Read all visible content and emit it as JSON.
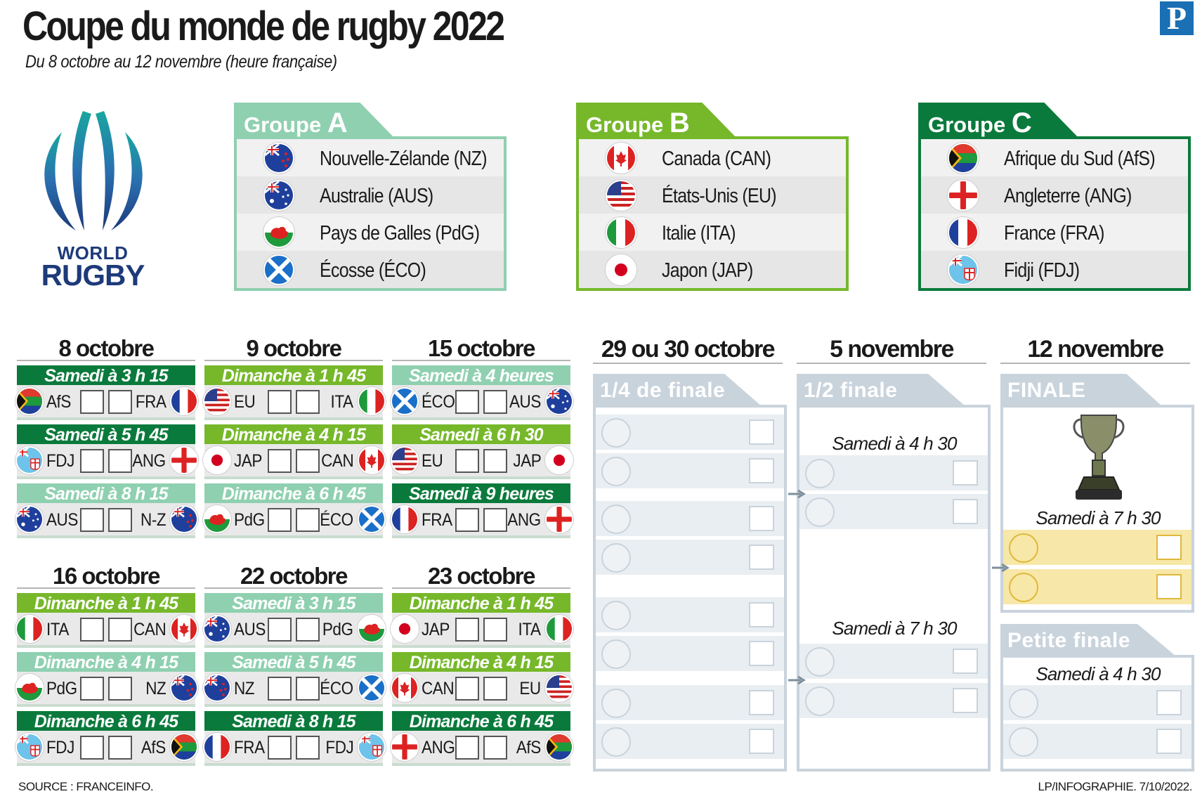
{
  "header": {
    "title": "Coupe du monde de rugby 2022",
    "subtitle": "Du 8 octobre au 12 novembre (heure française)",
    "brand": "P"
  },
  "logo": {
    "line1": "WORLD",
    "line2": "RUGBY"
  },
  "colors": {
    "groupA": "#8fd0b0",
    "groupB": "#76b82a",
    "groupC": "#0a7a3c",
    "time_light": "#8fd0b0",
    "time_mid": "#76b82a",
    "time_dark": "#0a7a3c",
    "knockout": "#c9d3dc",
    "final_slot": "#f7e7a8"
  },
  "groups": [
    {
      "prefix": "Groupe ",
      "letter": "A",
      "teams": [
        "Nouvelle-Zélande (NZ)",
        "Australie (AUS)",
        "Pays de Galles (PdG)",
        "Écosse (ÉCO)"
      ],
      "flags": [
        "nz-flag-icon",
        "australia-flag-icon",
        "wales-flag-icon",
        "scotland-flag-icon"
      ]
    },
    {
      "prefix": "Groupe ",
      "letter": "B",
      "teams": [
        "Canada (CAN)",
        "États-Unis (EU)",
        "Italie (ITA)",
        "Japon (JAP)"
      ],
      "flags": [
        "canada-flag-icon",
        "usa-flag-icon",
        "italy-flag-icon",
        "japan-flag-icon"
      ]
    },
    {
      "prefix": "Groupe ",
      "letter": "C",
      "teams": [
        "Afrique du Sud (AfS)",
        "Angleterre (ANG)",
        "France (FRA)",
        "Fidji (FDJ)"
      ],
      "flags": [
        "south-africa-flag-icon",
        "england-flag-icon",
        "france-flag-icon",
        "fiji-flag-icon"
      ]
    }
  ],
  "days": [
    {
      "date": "8 octobre",
      "matches": [
        {
          "time": "Samedi à 3 h 15",
          "a": "AfS",
          "b": "FRA"
        },
        {
          "time": "Samedi à 5 h 45",
          "a": "FDJ",
          "b": "ANG"
        },
        {
          "time": "Samedi à 8 h 15",
          "a": "AUS",
          "b": "N-Z"
        }
      ]
    },
    {
      "date": "9 octobre",
      "matches": [
        {
          "time": "Dimanche à 1 h 45",
          "a": "EU",
          "b": "ITA"
        },
        {
          "time": "Dimanche à 4 h 15",
          "a": "JAP",
          "b": "CAN"
        },
        {
          "time": "Dimanche à 6 h 45",
          "a": "PdG",
          "b": "ÉCO"
        }
      ]
    },
    {
      "date": "15 octobre",
      "matches": [
        {
          "time": "Samedi à 4 heures",
          "a": "ÉCO",
          "b": "AUS"
        },
        {
          "time": "Samedi à 6 h 30",
          "a": "EU",
          "b": "JAP"
        },
        {
          "time": "Samedi à 9 heures",
          "a": "FRA",
          "b": "ANG"
        }
      ]
    },
    {
      "date": "16 octobre",
      "matches": [
        {
          "time": "Dimanche à 1 h 45",
          "a": "ITA",
          "b": "CAN"
        },
        {
          "time": "Dimanche à 4 h 15",
          "a": "PdG",
          "b": "NZ"
        },
        {
          "time": "Dimanche à 6 h 45",
          "a": "FDJ",
          "b": "AfS"
        }
      ]
    },
    {
      "date": "22 octobre",
      "matches": [
        {
          "time": "Samedi à 3 h 15",
          "a": "AUS",
          "b": "PdG"
        },
        {
          "time": "Samedi à 5 h 45",
          "a": "NZ",
          "b": "ÉCO"
        },
        {
          "time": "Samedi à 8 h 15",
          "a": "FRA",
          "b": "FDJ"
        }
      ]
    },
    {
      "date": "23 octobre",
      "matches": [
        {
          "time": "Dimanche à 1 h 45",
          "a": "JAP",
          "b": "ITA"
        },
        {
          "time": "Dimanche à 4 h 15",
          "a": "CAN",
          "b": "EU"
        },
        {
          "time": "Dimanche à 6 h 45",
          "a": "ANG",
          "b": "AfS"
        }
      ]
    }
  ],
  "knockout": {
    "quarter": {
      "date": "29 ou 30 octobre",
      "label": "1/4 de finale"
    },
    "semi": {
      "date": "5 novembre",
      "label": "1/2 finale",
      "time1": "Samedi à 4 h 30",
      "time2": "Samedi à 7 h 30"
    },
    "final": {
      "date": "12 novembre",
      "label": "FINALE",
      "time": "Samedi à 7 h 30"
    },
    "small_final": {
      "label": "Petite finale",
      "time": "Samedi à 4 h 30"
    }
  },
  "footer": {
    "source": "SOURCE : FRANCEINFO.",
    "credit": "LP/INFOGRAPHIE.  7/10/2022."
  }
}
